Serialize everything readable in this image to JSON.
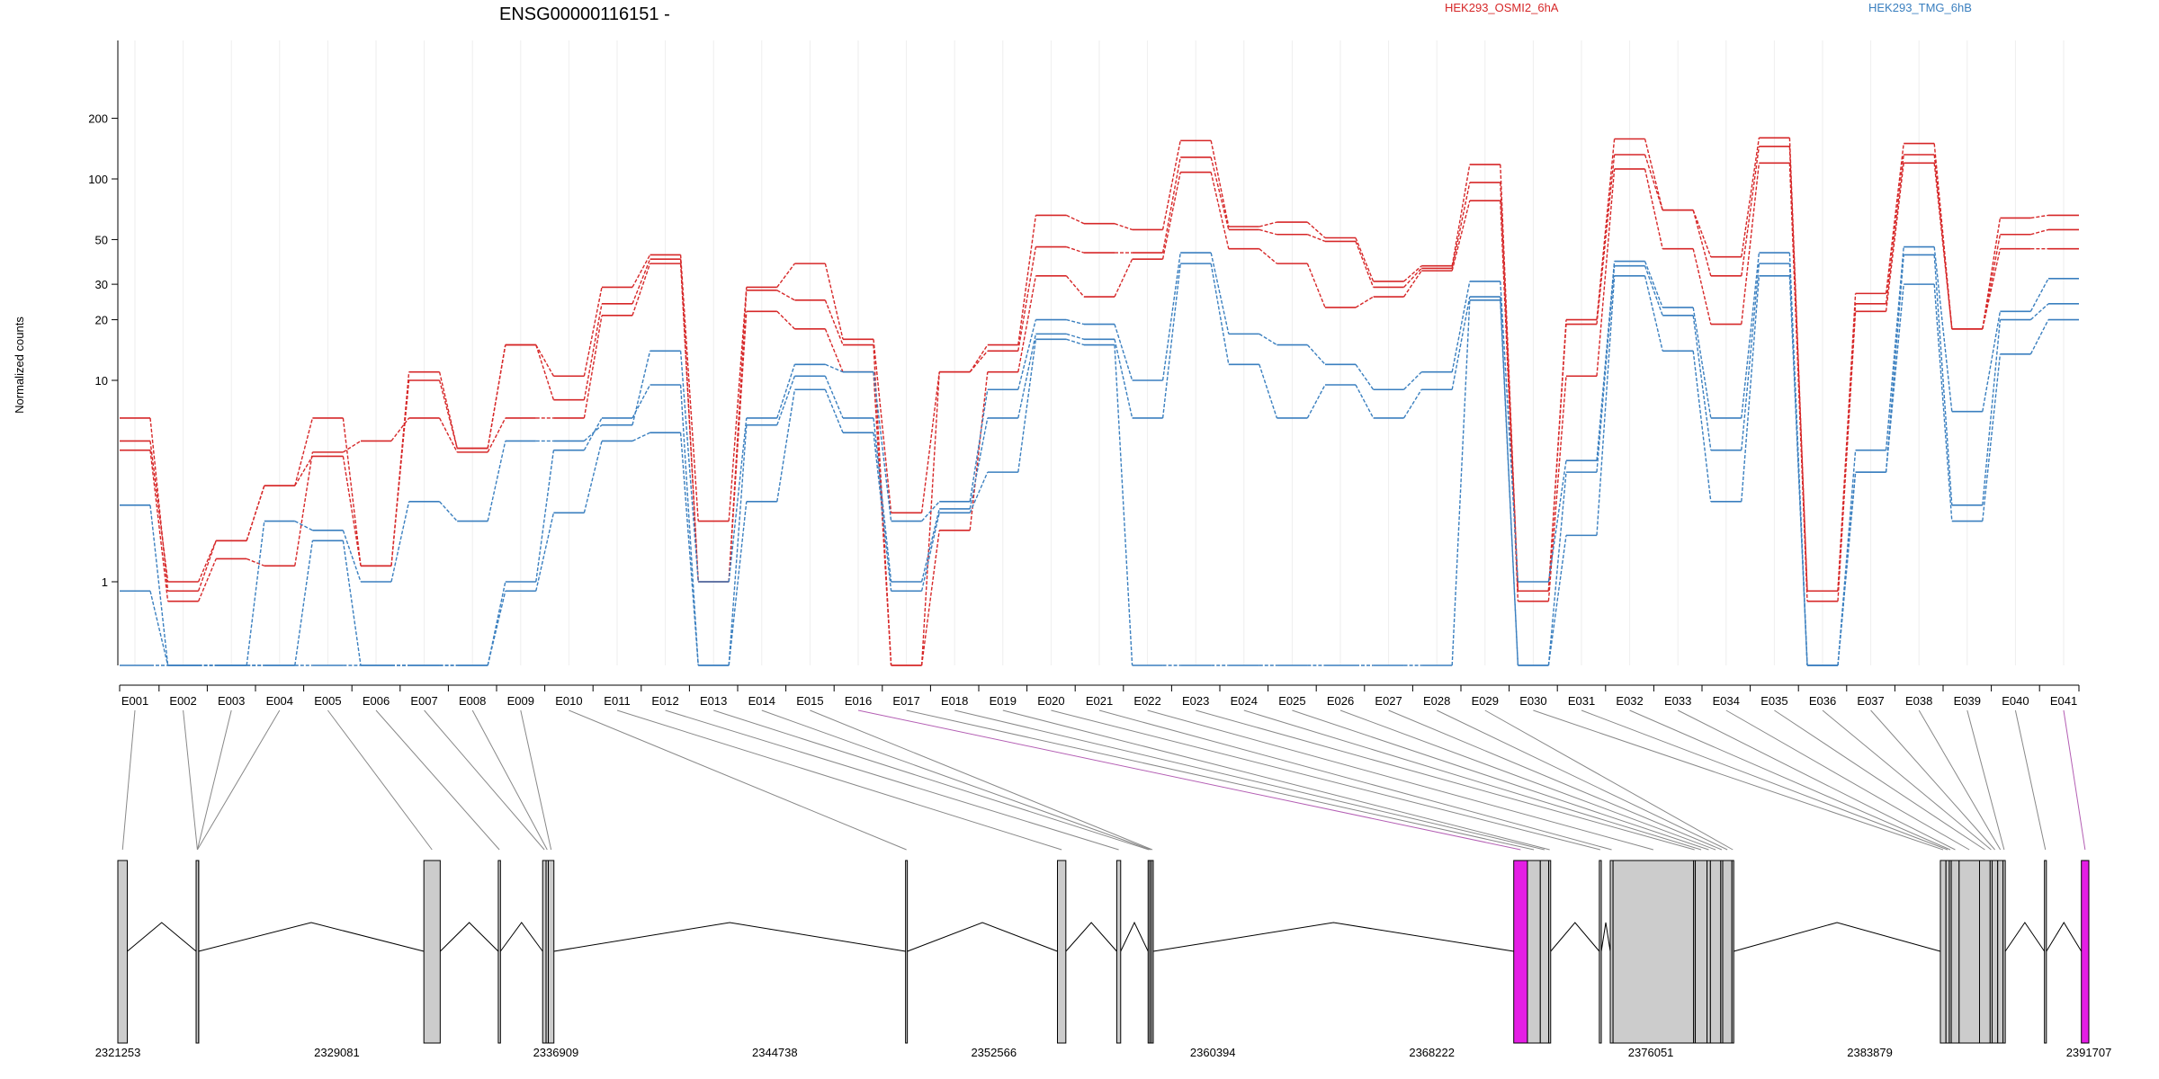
{
  "chart_data": {
    "type": "line",
    "title": "ENSG00000116151 -",
    "ylabel": "Normalized counts",
    "yscale": "log",
    "y_floor": 0.4,
    "y_ticks": [
      1,
      10,
      20,
      30,
      50,
      100,
      200
    ],
    "y_tick_labels": [
      "1",
      "10",
      "20",
      "30",
      "50",
      "100",
      "200"
    ],
    "legend": [
      {
        "name": "HEK293_OSMI2_6hA",
        "color": "#d62728"
      },
      {
        "name": "HEK293_TMG_6hB",
        "color": "#3a7fbf"
      }
    ],
    "categories": [
      "E001",
      "E002",
      "E003",
      "E004",
      "E005",
      "E006",
      "E007",
      "E008",
      "E009",
      "E010",
      "E011",
      "E012",
      "E013",
      "E014",
      "E015",
      "E016",
      "E017",
      "E018",
      "E019",
      "E020",
      "E021",
      "E022",
      "E023",
      "E024",
      "E025",
      "E026",
      "E027",
      "E028",
      "E029",
      "E030",
      "E031",
      "E032",
      "E033",
      "E034",
      "E035",
      "E036",
      "E037",
      "E038",
      "E039",
      "E040",
      "E041"
    ],
    "series": [
      {
        "group": "HEK293_OSMI2_6hA",
        "color": "#d62728",
        "values": [
          6.5,
          0.9,
          1.6,
          3,
          4.2,
          1.2,
          11,
          4.6,
          15,
          10.5,
          29,
          42,
          2,
          29,
          38,
          16,
          2.2,
          11,
          15,
          66,
          60,
          56,
          155,
          58,
          61,
          51,
          31,
          37,
          118,
          0.9,
          20,
          158,
          70,
          41,
          160,
          0.9,
          27,
          150,
          18,
          64,
          66
        ]
      },
      {
        "group": "HEK293_OSMI2_6hA",
        "color": "#d62728",
        "values": [
          5,
          1,
          1.6,
          3,
          6.5,
          1.2,
          10,
          4.6,
          15,
          8,
          24,
          40,
          1,
          28,
          25,
          15,
          0.4,
          11,
          14,
          46,
          43,
          43,
          128,
          56,
          53,
          49,
          29,
          36,
          96,
          0.9,
          19,
          132,
          70,
          33,
          145,
          0.9,
          24,
          132,
          18,
          53,
          56
        ]
      },
      {
        "group": "HEK293_OSMI2_6hA",
        "color": "#d62728",
        "values": [
          4.5,
          0.8,
          1.3,
          1.2,
          4.4,
          5,
          6.5,
          4.4,
          6.5,
          6.5,
          21,
          38,
          1,
          22,
          18,
          11,
          0.4,
          1.8,
          11,
          33,
          26,
          40,
          108,
          45,
          38,
          23,
          26,
          35,
          78,
          0.8,
          10.5,
          112,
          45,
          19,
          120,
          0.8,
          22,
          120,
          18,
          45,
          45
        ]
      },
      {
        "group": "HEK293_TMG_6hB",
        "color": "#3a7fbf",
        "values": [
          2.4,
          0.4,
          0.4,
          2,
          1.8,
          1,
          2.5,
          2,
          5,
          5,
          6,
          14,
          1,
          6.5,
          12,
          11,
          2,
          2.5,
          9,
          20,
          19,
          10,
          43,
          17,
          15,
          12,
          9,
          11,
          31,
          1,
          4,
          39,
          23,
          6.5,
          43,
          0.4,
          4.5,
          46,
          7,
          22,
          32
        ]
      },
      {
        "group": "HEK293_TMG_6hB",
        "color": "#3a7fbf",
        "values": [
          0.9,
          0.4,
          0.4,
          0.4,
          1.6,
          0.4,
          0.4,
          0.4,
          1,
          4.5,
          6.5,
          9.5,
          0.4,
          6,
          10.5,
          6.5,
          1,
          2.3,
          6.5,
          17,
          16,
          6.5,
          38,
          12,
          6.5,
          9.5,
          6.5,
          9,
          26,
          0.4,
          3.5,
          37,
          21,
          4.5,
          38,
          0.4,
          3.5,
          42,
          2.4,
          20,
          24
        ]
      },
      {
        "group": "HEK293_TMG_6hB",
        "color": "#3a7fbf",
        "values": [
          0.4,
          0.4,
          0.4,
          0.4,
          0.4,
          0.4,
          0.4,
          0.4,
          0.9,
          2.2,
          5,
          5.5,
          0.4,
          2.5,
          9,
          5.5,
          0.9,
          2.2,
          3.5,
          16,
          15,
          0.4,
          0.4,
          0.4,
          0.4,
          0.4,
          0.4,
          0.4,
          25,
          0.4,
          1.7,
          33,
          14,
          2.5,
          33,
          0.4,
          3.5,
          30,
          2,
          13.5,
          20
        ]
      }
    ],
    "gene_model": {
      "coord_labels": [
        "2321253",
        "2329081",
        "2336909",
        "2344738",
        "2352566",
        "2360394",
        "2368222",
        "2376051",
        "2383879",
        "2391707"
      ],
      "coord_min": 2321253,
      "coord_max": 2391707,
      "highlight_color": "#e41ee4",
      "exon_color": "#cccccc",
      "highlighted_exons": [
        "E016",
        "E041"
      ],
      "exons": [
        {
          "id": "E001",
          "start": 2321253,
          "end": 2321590
        },
        {
          "id": "E002",
          "start": 2324052,
          "end": 2324140
        },
        {
          "id": "E003",
          "start": 2324052,
          "end": 2324140
        },
        {
          "id": "E004",
          "start": 2324052,
          "end": 2324140
        },
        {
          "id": "E005",
          "start": 2332192,
          "end": 2332776
        },
        {
          "id": "E006",
          "start": 2334852,
          "end": 2334930
        },
        {
          "id": "E007",
          "start": 2336438,
          "end": 2336560
        },
        {
          "id": "E008",
          "start": 2336560,
          "end": 2336640
        },
        {
          "id": "E009",
          "start": 2336640,
          "end": 2336840
        },
        {
          "id": "E010",
          "start": 2349410,
          "end": 2349470
        },
        {
          "id": "E011",
          "start": 2354840,
          "end": 2355140
        },
        {
          "id": "E012",
          "start": 2356960,
          "end": 2357100
        },
        {
          "id": "E013",
          "start": 2358080,
          "end": 2358140
        },
        {
          "id": "E014",
          "start": 2358140,
          "end": 2358200
        },
        {
          "id": "E015",
          "start": 2358200,
          "end": 2358240
        },
        {
          "id": "E016",
          "start": 2371150,
          "end": 2371640
        },
        {
          "id": "E017",
          "start": 2371640,
          "end": 2372100
        },
        {
          "id": "E018",
          "start": 2372100,
          "end": 2372400
        },
        {
          "id": "E019",
          "start": 2372400,
          "end": 2372470
        },
        {
          "id": "E020",
          "start": 2374210,
          "end": 2374280
        },
        {
          "id": "E021",
          "start": 2374600,
          "end": 2374700
        },
        {
          "id": "E022",
          "start": 2374700,
          "end": 2377580
        },
        {
          "id": "E023",
          "start": 2377580,
          "end": 2377640
        },
        {
          "id": "E024",
          "start": 2377640,
          "end": 2378060
        },
        {
          "id": "E025",
          "start": 2378060,
          "end": 2378180
        },
        {
          "id": "E026",
          "start": 2378180,
          "end": 2378550
        },
        {
          "id": "E027",
          "start": 2378550,
          "end": 2378620
        },
        {
          "id": "E028",
          "start": 2378620,
          "end": 2378950
        },
        {
          "id": "E029",
          "start": 2378950,
          "end": 2379000
        },
        {
          "id": "E030",
          "start": 2386400,
          "end": 2386600
        },
        {
          "id": "E031",
          "start": 2386600,
          "end": 2386720
        },
        {
          "id": "E032",
          "start": 2386720,
          "end": 2386790
        },
        {
          "id": "E033",
          "start": 2386790,
          "end": 2387070
        },
        {
          "id": "E034",
          "start": 2387070,
          "end": 2387800
        },
        {
          "id": "E035",
          "start": 2387800,
          "end": 2388180
        },
        {
          "id": "E036",
          "start": 2388180,
          "end": 2388250
        },
        {
          "id": "E037",
          "start": 2388250,
          "end": 2388450
        },
        {
          "id": "E038",
          "start": 2388450,
          "end": 2388640
        },
        {
          "id": "E039",
          "start": 2388640,
          "end": 2388720
        },
        {
          "id": "E040",
          "start": 2390120,
          "end": 2390190
        },
        {
          "id": "E041",
          "start": 2391440,
          "end": 2391707
        }
      ]
    }
  }
}
